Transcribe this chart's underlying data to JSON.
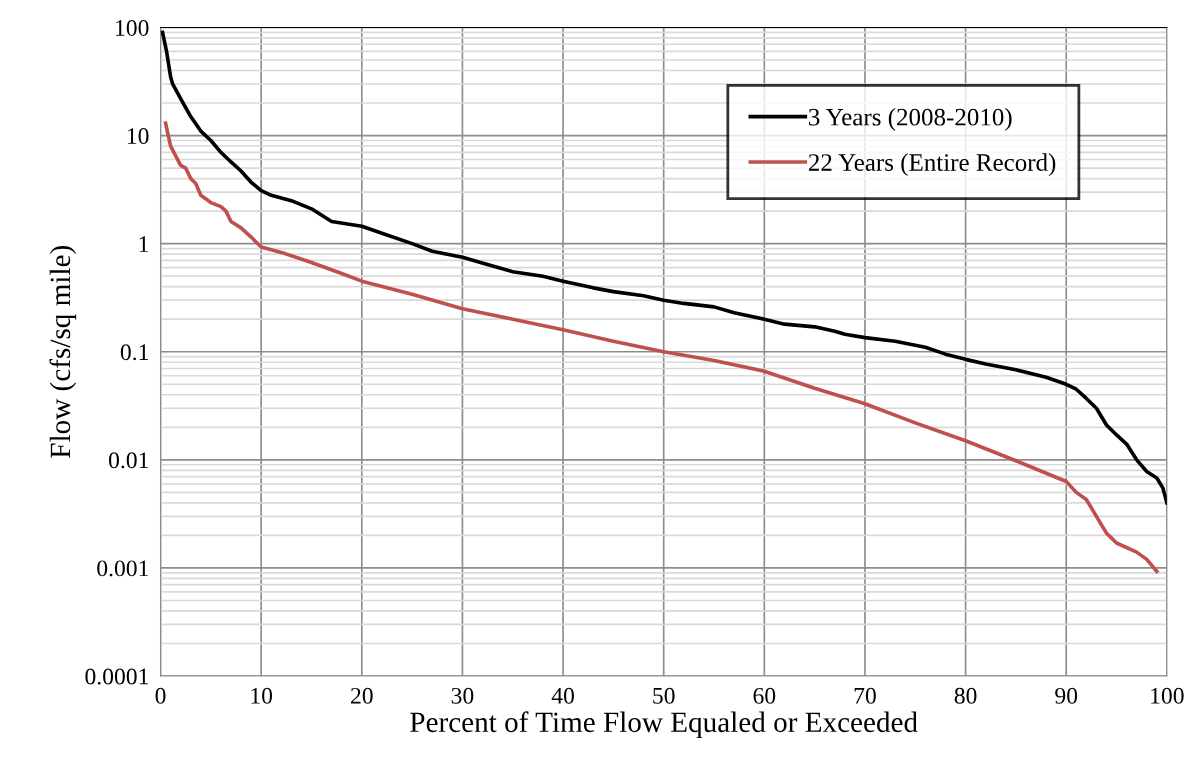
{
  "chart_data": {
    "type": "line",
    "xlabel": "Percent of Time Flow Equaled or Exceeded",
    "ylabel": "Flow (cfs/sq mile)",
    "log": "y",
    "grid": true,
    "legend": "top right",
    "marker": "none",
    "line_style": "solid",
    "xlim": [
      0,
      100
    ],
    "xticks": [
      0,
      10,
      20,
      30,
      40,
      50,
      60,
      70,
      80,
      90,
      100
    ],
    "ylim": [
      0.0001,
      100
    ],
    "yticks": [
      0.0001,
      0.001,
      0.01,
      0.1,
      1,
      10,
      100
    ],
    "series": [
      {
        "name": "3 Years (2008-2010)",
        "color": "#000000",
        "x": [
          0.2,
          0.6,
          1.0,
          1.2,
          2,
          3,
          4,
          5,
          6,
          7,
          8,
          9,
          10,
          11,
          13,
          15,
          17,
          20,
          22,
          25,
          27,
          30,
          33,
          35,
          38,
          40,
          43,
          45,
          48,
          50,
          52,
          55,
          57,
          60,
          62,
          65,
          67,
          68,
          70,
          73,
          76,
          78,
          80,
          82,
          85,
          88,
          90,
          91,
          92,
          93,
          94,
          95,
          96,
          97,
          98,
          99,
          99.6,
          100
        ],
        "values": [
          90,
          60,
          35,
          30,
          22,
          15,
          11,
          9,
          7,
          5.7,
          4.7,
          3.7,
          3.1,
          2.8,
          2.5,
          2.1,
          1.6,
          1.45,
          1.25,
          1.0,
          0.85,
          0.75,
          0.62,
          0.55,
          0.5,
          0.45,
          0.39,
          0.36,
          0.33,
          0.3,
          0.28,
          0.26,
          0.23,
          0.2,
          0.18,
          0.17,
          0.155,
          0.145,
          0.135,
          0.125,
          0.11,
          0.095,
          0.085,
          0.077,
          0.068,
          0.058,
          0.05,
          0.045,
          0.037,
          0.03,
          0.021,
          0.017,
          0.014,
          0.01,
          0.0078,
          0.0068,
          0.0055,
          0.004
        ]
      },
      {
        "name": "22 Years (Entire Record)",
        "color": "#c0504d",
        "x": [
          0.5,
          1,
          1.5,
          2,
          2.5,
          3,
          3.5,
          4,
          5,
          6,
          6.5,
          7,
          8,
          9,
          10,
          12,
          15,
          18,
          20,
          25,
          30,
          35,
          40,
          45,
          50,
          55,
          60,
          65,
          70,
          75,
          80,
          85,
          90,
          91,
          92,
          93,
          94,
          95,
          97,
          98,
          99
        ],
        "values": [
          13,
          8,
          6.5,
          5.3,
          5,
          4,
          3.6,
          2.8,
          2.4,
          2.2,
          2.0,
          1.6,
          1.4,
          1.15,
          0.93,
          0.83,
          0.67,
          0.53,
          0.45,
          0.34,
          0.25,
          0.2,
          0.16,
          0.125,
          0.1,
          0.083,
          0.066,
          0.046,
          0.033,
          0.022,
          0.015,
          0.0098,
          0.0063,
          0.005,
          0.0043,
          0.003,
          0.0021,
          0.0017,
          0.0014,
          0.0012,
          0.00093
        ]
      }
    ]
  }
}
